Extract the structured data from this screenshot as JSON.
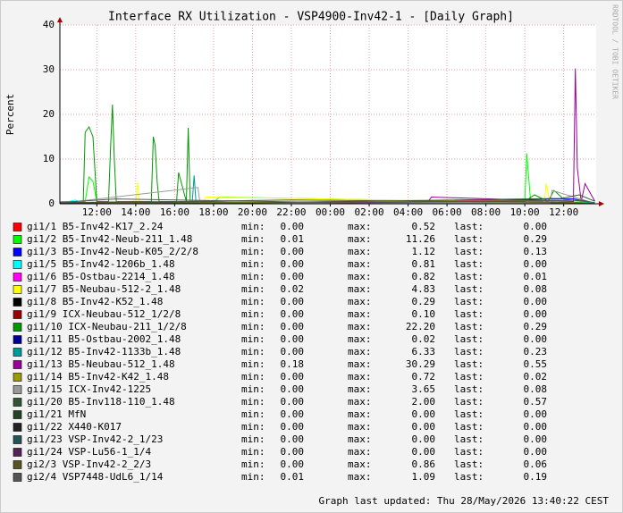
{
  "chart_data": {
    "type": "line",
    "title": "Interface RX Utilization - VSP4900-Inv42-1 - [Daily Graph]",
    "ylabel": "Percent",
    "watermark": "RRDTOOL / TOBI OETIKER",
    "footer": "Graph last updated: Thu 28/May/2026 13:40:22 CEST",
    "stat_labels": [
      "min:",
      "max:",
      "last:"
    ],
    "xlim": [
      10.1,
      37.67
    ],
    "xticks": [
      {
        "value": 12,
        "label": "12:00"
      },
      {
        "value": 14,
        "label": "14:00"
      },
      {
        "value": 16,
        "label": "16:00"
      },
      {
        "value": 18,
        "label": "18:00"
      },
      {
        "value": 20,
        "label": "20:00"
      },
      {
        "value": 22,
        "label": "22:00"
      },
      {
        "value": 24,
        "label": "00:00"
      },
      {
        "value": 26,
        "label": "02:00"
      },
      {
        "value": 28,
        "label": "04:00"
      },
      {
        "value": 30,
        "label": "06:00"
      },
      {
        "value": 32,
        "label": "08:00"
      },
      {
        "value": 34,
        "label": "10:00"
      },
      {
        "value": 36,
        "label": "12:00"
      }
    ],
    "ylim": [
      0,
      40
    ],
    "yticks": [
      0,
      10,
      20,
      30,
      40
    ],
    "grid": true,
    "series": [
      {
        "name": "gi1/1 B5-Inv42-K17_2.24",
        "color": "#ff0000",
        "x": [
          10.1,
          14,
          20,
          28,
          33,
          37.6
        ],
        "values": [
          0.2,
          0.52,
          0.1,
          0.2,
          0.3,
          0
        ],
        "min": {
          "value": 0,
          "label": "0.00"
        },
        "max": 0.52,
        "last": {
          "value": 0,
          "label": "0.00"
        }
      },
      {
        "name": "gi1/2 B5-Inv42-Neub-211_1.48",
        "color": "#00ff00",
        "x": [
          10.1,
          11.4,
          11.6,
          11.8,
          12,
          18,
          18.3,
          34,
          34.1,
          34.3,
          34.5,
          35,
          37.6
        ],
        "values": [
          0.5,
          0.5,
          6,
          5,
          0.5,
          0.3,
          1.5,
          0.3,
          11.26,
          0.5,
          0.4,
          0.6,
          0.29
        ],
        "min": 0.01,
        "max": 11.26,
        "last": 0.29
      },
      {
        "name": "gi1/3 B5-Inv42-Neub-K05_2/2/8",
        "color": "#0000ff",
        "x": [
          10.1,
          15,
          24,
          36.5,
          37.6
        ],
        "values": [
          0.1,
          0.3,
          0.1,
          1.12,
          0.13
        ],
        "min": {
          "value": 0,
          "label": "0.00"
        },
        "max": 1.12,
        "last": 0.13
      },
      {
        "name": "gi1/5 B5-Inv42-1206b_1.48",
        "color": "#00ffff",
        "x": [
          10.1,
          10.9,
          11.2,
          20,
          37.6
        ],
        "values": [
          0.1,
          0.81,
          0.2,
          0.1,
          0
        ],
        "min": {
          "value": 0,
          "label": "0.00"
        },
        "max": 0.81,
        "last": {
          "value": 0,
          "label": "0.00"
        }
      },
      {
        "name": "gi1/6 B5-Ostbau-2214_1.48",
        "color": "#ff00ff",
        "x": [
          10.1,
          25,
          33,
          37.6
        ],
        "values": [
          0.1,
          0.4,
          0.82,
          0.01
        ],
        "min": {
          "value": 0,
          "label": "0.00"
        },
        "max": 0.82,
        "last": 0.01
      },
      {
        "name": "gi1/7 B5-Neubau-512-2_1.48",
        "color": "#ffff00",
        "x": [
          10.1,
          14,
          14.1,
          14.2,
          17.5,
          17.6,
          35,
          35.1,
          35.3,
          37.6
        ],
        "values": [
          0.1,
          0.1,
          4.83,
          0.2,
          0.2,
          1.5,
          0.3,
          4.5,
          0.3,
          0.08
        ],
        "min": 0.02,
        "max": 4.83,
        "last": 0.08
      },
      {
        "name": "gi1/8 B5-Inv42-K52_1.48",
        "color": "#000000",
        "x": [
          10.1,
          19,
          37.6
        ],
        "values": [
          0.1,
          0.29,
          0
        ],
        "min": {
          "value": 0,
          "label": "0.00"
        },
        "max": 0.29,
        "last": {
          "value": 0,
          "label": "0.00"
        }
      },
      {
        "name": "gi1/9 ICX-Neubau-512_1/2/8",
        "color": "#990000",
        "x": [
          10.1,
          27,
          37.6
        ],
        "values": [
          0,
          0.1,
          0
        ],
        "min": {
          "value": 0,
          "label": "0.00"
        },
        "max": {
          "value": 0.1,
          "label": "0.10"
        },
        "last": {
          "value": 0,
          "label": "0.00"
        }
      },
      {
        "name": "gi1/10 ICX-Neubau-211_1/2/8",
        "color": "#009900",
        "x": [
          10.1,
          11.3,
          11.4,
          11.6,
          11.8,
          12.0,
          12.6,
          12.7,
          12.8,
          12.9,
          13.0,
          14.8,
          14.9,
          15.0,
          15.1,
          15.2,
          16.1,
          16.2,
          16.6,
          16.7,
          16.8,
          20,
          34,
          34.5,
          35.2,
          35.5,
          36,
          37.6
        ],
        "values": [
          0.3,
          0.3,
          16,
          17.2,
          15,
          0.5,
          0.5,
          12,
          22.2,
          10,
          0.5,
          0.5,
          15,
          13,
          5,
          0.5,
          0.5,
          7,
          0.5,
          17,
          0.5,
          0.3,
          0.5,
          2,
          0.5,
          3,
          1,
          0.29
        ],
        "min": {
          "value": 0,
          "label": "0.00"
        },
        "max": {
          "value": 22.2,
          "label": "22.20"
        },
        "last": 0.29
      },
      {
        "name": "gi1/11 B5-Ostbau-2002_1.48",
        "color": "#000099",
        "x": [
          10.1,
          30,
          37.6
        ],
        "values": [
          0,
          0.02,
          0
        ],
        "min": {
          "value": 0,
          "label": "0.00"
        },
        "max": 0.02,
        "last": {
          "value": 0,
          "label": "0.00"
        }
      },
      {
        "name": "gi1/12 B5-Inv42-1133b_1.48",
        "color": "#009999",
        "x": [
          10.1,
          16.9,
          17.0,
          17.1,
          37.6
        ],
        "values": [
          0.1,
          0.1,
          6.33,
          0.2,
          0.23
        ],
        "min": {
          "value": 0,
          "label": "0.00"
        },
        "max": 6.33,
        "last": 0.23
      },
      {
        "name": "gi1/13 B5-Neubau-512_1.48",
        "color": "#990099",
        "x": [
          10.1,
          29,
          29.2,
          36.5,
          36.6,
          36.7,
          36.9,
          37.1,
          37.6
        ],
        "values": [
          0.3,
          0.3,
          1.5,
          0.5,
          30.29,
          8,
          0.5,
          4.5,
          0.55
        ],
        "min": 0.18,
        "max": 30.29,
        "last": 0.55
      },
      {
        "name": "gi1/14 B5-Inv42-K42_1.48",
        "color": "#999900",
        "x": [
          10.1,
          34.8,
          37.6
        ],
        "values": [
          0.1,
          0.72,
          0.02
        ],
        "min": {
          "value": 0,
          "label": "0.00"
        },
        "max": 0.72,
        "last": 0.02
      },
      {
        "name": "gi1/15 ICX-Inv42-1225",
        "color": "#999999",
        "x": [
          10.1,
          17.2,
          17.3,
          35.3,
          35.4,
          37.6
        ],
        "values": [
          0.1,
          3.65,
          0.2,
          0.2,
          3.0,
          0.08
        ],
        "min": {
          "value": 0,
          "label": "0.00"
        },
        "max": 3.65,
        "last": 0.08
      },
      {
        "name": "gi1/20 B5-Inv118-110_1.48",
        "color": "#335533",
        "x": [
          10.1,
          20,
          35.9,
          36.8,
          37.6
        ],
        "values": [
          0.3,
          0.2,
          1.2,
          2.0,
          0.57
        ],
        "min": {
          "value": 0,
          "label": "0.00"
        },
        "max": {
          "value": 2,
          "label": "2.00"
        },
        "last": 0.57
      },
      {
        "name": "gi1/21 MfN",
        "color": "#224422",
        "x": [
          10.1,
          37.6
        ],
        "values": [
          0,
          0
        ],
        "min": {
          "value": 0,
          "label": "0.00"
        },
        "max": {
          "value": 0,
          "label": "0.00"
        },
        "last": {
          "value": 0,
          "label": "0.00"
        }
      },
      {
        "name": "gi1/22 X440-K017",
        "color": "#222222",
        "x": [
          10.1,
          37.6
        ],
        "values": [
          0,
          0
        ],
        "min": {
          "value": 0,
          "label": "0.00"
        },
        "max": {
          "value": 0,
          "label": "0.00"
        },
        "last": {
          "value": 0,
          "label": "0.00"
        }
      },
      {
        "name": "gi1/23 VSP-Inv42-2_1/23",
        "color": "#225555",
        "x": [
          10.1,
          37.6
        ],
        "values": [
          0,
          0
        ],
        "min": {
          "value": 0,
          "label": "0.00"
        },
        "max": {
          "value": 0,
          "label": "0.00"
        },
        "last": {
          "value": 0,
          "label": "0.00"
        }
      },
      {
        "name": "gi1/24 VSP-Lu56-1_1/4",
        "color": "#552255",
        "x": [
          10.1,
          37.6
        ],
        "values": [
          0,
          0
        ],
        "min": {
          "value": 0,
          "label": "0.00"
        },
        "max": {
          "value": 0,
          "label": "0.00"
        },
        "last": {
          "value": 0,
          "label": "0.00"
        }
      },
      {
        "name": "gi2/3 VSP-Inv42-2_2/3",
        "color": "#555522",
        "x": [
          10.1,
          22,
          36,
          37.6
        ],
        "values": [
          0.1,
          0.86,
          0.3,
          0.06
        ],
        "min": {
          "value": 0,
          "label": "0.00"
        },
        "max": 0.86,
        "last": 0.06
      },
      {
        "name": "gi2/4 VSP7448-UdL6_1/14",
        "color": "#555555",
        "x": [
          10.1,
          13,
          25,
          37.0,
          37.6
        ],
        "values": [
          0.3,
          1.09,
          0.2,
          0.8,
          0.19
        ],
        "min": 0.01,
        "max": 1.09,
        "last": 0.19
      }
    ]
  }
}
